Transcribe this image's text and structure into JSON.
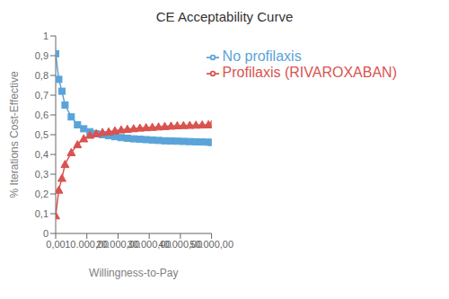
{
  "chart_data": {
    "type": "line",
    "title": "CE Acceptability Curve",
    "x_label": "Willingness-to-Pay",
    "y_label": "% Iterations Cost-Effective",
    "x": [
      0,
      1000,
      2000,
      3000,
      5000,
      7000,
      9000,
      11000,
      13000,
      15000,
      17000,
      19000,
      21000,
      23000,
      25000,
      27000,
      29000,
      31000,
      33000,
      35000,
      37000,
      39000,
      41000,
      43000,
      45000,
      47000,
      49000,
      50000
    ],
    "series": [
      {
        "name": "No profilaxis",
        "color": "#5BA3D9",
        "marker": "square",
        "values": [
          0.91,
          0.78,
          0.72,
          0.65,
          0.59,
          0.55,
          0.53,
          0.515,
          0.505,
          0.5,
          0.495,
          0.49,
          0.485,
          0.482,
          0.479,
          0.477,
          0.475,
          0.473,
          0.471,
          0.469,
          0.468,
          0.467,
          0.466,
          0.465,
          0.464,
          0.463,
          0.462,
          0.461
        ]
      },
      {
        "name": "Profilaxis (RIVAROXABAN)",
        "color": "#D9534F",
        "marker": "triangle",
        "values": [
          0.09,
          0.22,
          0.28,
          0.35,
          0.41,
          0.45,
          0.48,
          0.498,
          0.506,
          0.512,
          0.515,
          0.52,
          0.525,
          0.528,
          0.531,
          0.534,
          0.536,
          0.538,
          0.54,
          0.542,
          0.544,
          0.546,
          0.547,
          0.548,
          0.549,
          0.55,
          0.551,
          0.552
        ]
      }
    ],
    "xlim": [
      0,
      50000
    ],
    "xticks": [
      {
        "value": 0,
        "label": "0,00"
      },
      {
        "value": 10000,
        "label": "10.000,00"
      },
      {
        "value": 20000,
        "label": "20.000,00"
      },
      {
        "value": 30000,
        "label": "30.000,00"
      },
      {
        "value": 40000,
        "label": "40.000,00"
      },
      {
        "value": 50000,
        "label": "50.000,00"
      }
    ],
    "ylim": [
      0,
      1.0
    ],
    "yticks": [
      0,
      {
        "value": 0.1,
        "label": "0,1"
      },
      {
        "value": 0.2,
        "label": "0,2"
      },
      {
        "value": 0.3,
        "label": "0,3"
      },
      {
        "value": 0.4,
        "label": "0,4"
      },
      {
        "value": 0.5,
        "label": "0,5"
      },
      {
        "value": 0.6,
        "label": "0,6"
      },
      {
        "value": 0.7,
        "label": "0,7"
      },
      {
        "value": 0.8,
        "label": "0,8"
      },
      {
        "value": 0.9,
        "label": "0,9"
      },
      1
    ],
    "grid": false,
    "legend": "upper right"
  }
}
